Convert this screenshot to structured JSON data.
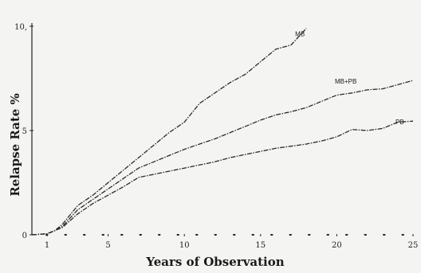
{
  "chart_data": {
    "type": "line",
    "title": "",
    "xlabel": "Years of Observation",
    "ylabel": "Relapse Rate %",
    "xlim": [
      0,
      25
    ],
    "ylim": [
      0,
      10
    ],
    "x_ticks": [
      {
        "value": 1,
        "label": "1"
      },
      {
        "value": 5,
        "label": "5"
      },
      {
        "value": 10,
        "label": "10"
      },
      {
        "value": 15,
        "label": "15"
      },
      {
        "value": 20,
        "label": "20"
      },
      {
        "value": 25,
        "label": "25"
      }
    ],
    "y_ticks": [
      {
        "value": 0,
        "label": "0"
      },
      {
        "value": 5,
        "label": "5"
      },
      {
        "value": 10,
        "label": "10,"
      }
    ],
    "grid": false,
    "legend": "inline labels at line ends",
    "series": [
      {
        "name": "MB",
        "x": [
          0,
          1,
          1.5,
          2,
          3,
          4,
          5,
          6,
          7,
          8,
          9,
          10,
          11,
          12,
          13,
          14,
          15,
          16,
          17,
          18
        ],
        "y": [
          0,
          0.05,
          0.2,
          0.5,
          1.4,
          1.9,
          2.5,
          3.1,
          3.7,
          4.3,
          4.9,
          5.4,
          6.3,
          6.8,
          7.3,
          7.7,
          8.3,
          8.9,
          9.1,
          9.9
        ]
      },
      {
        "name": "MB+PB",
        "x": [
          0,
          1,
          1.5,
          2,
          3,
          4,
          5,
          6,
          7,
          8,
          9,
          10,
          11,
          12,
          13,
          14,
          15,
          16,
          17,
          18,
          19,
          20,
          21,
          22,
          23,
          24,
          25
        ],
        "y": [
          0,
          0.05,
          0.2,
          0.4,
          1.2,
          1.7,
          2.2,
          2.7,
          3.2,
          3.5,
          3.8,
          4.1,
          4.35,
          4.6,
          4.9,
          5.2,
          5.5,
          5.75,
          5.9,
          6.1,
          6.4,
          6.7,
          6.8,
          6.95,
          7.0,
          7.2,
          7.4
        ]
      },
      {
        "name": "PB",
        "x": [
          0,
          1,
          1.5,
          2,
          3,
          4,
          5,
          6,
          7,
          8,
          9,
          10,
          11,
          12,
          13,
          14,
          15,
          16,
          17,
          18,
          19,
          20,
          21,
          22,
          23,
          24,
          25
        ],
        "y": [
          0,
          0.05,
          0.2,
          0.35,
          1.0,
          1.5,
          1.9,
          2.3,
          2.75,
          2.9,
          3.05,
          3.2,
          3.35,
          3.5,
          3.7,
          3.85,
          4.0,
          4.15,
          4.25,
          4.35,
          4.5,
          4.7,
          5.05,
          5.0,
          5.1,
          5.4,
          5.45
        ]
      }
    ]
  }
}
